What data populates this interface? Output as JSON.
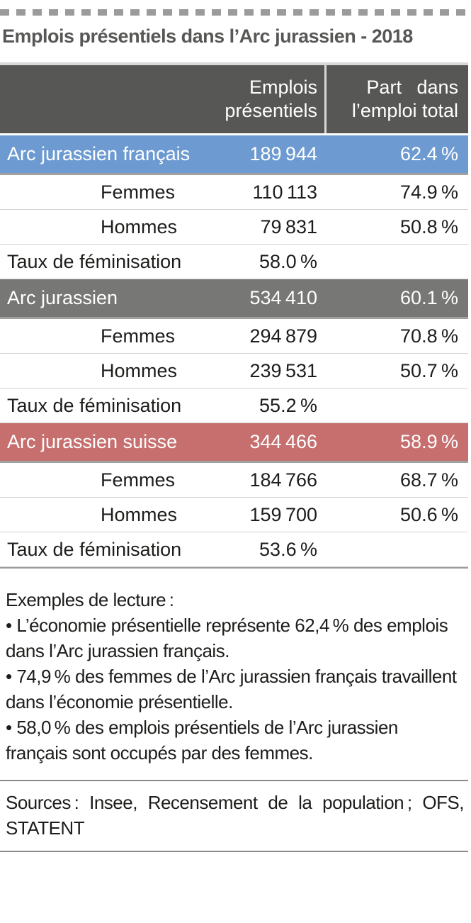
{
  "title": "Emplois présentiels dans l’Arc jurassien - 2018",
  "colors": {
    "header_bg": "#575756",
    "french_row": "#6d9bd1",
    "whole_arc_row": "#777776",
    "swiss_row": "#c66f6e"
  },
  "table": {
    "col_jobs_line1": "Emplois",
    "col_jobs_line2": "présentiels",
    "col_share_line1": "Part dans",
    "col_share_line2": "l’emploi total",
    "sections": [
      {
        "name": "Arc jurassien français",
        "jobs": "189 944",
        "share": "62.4 %",
        "rows": [
          {
            "label": "Femmes",
            "jobs": "110 113",
            "share": "74.9 %"
          },
          {
            "label": "Hommes",
            "jobs": "79 831",
            "share": "50.8 %"
          }
        ],
        "feminisation_label": "Taux de féminisation",
        "feminisation_value": "58.0 %"
      },
      {
        "name": "Arc jurassien",
        "jobs": "534 410",
        "share": "60.1 %",
        "rows": [
          {
            "label": "Femmes",
            "jobs": "294 879",
            "share": "70.8 %"
          },
          {
            "label": "Hommes",
            "jobs": "239 531",
            "share": "50.7 %"
          }
        ],
        "feminisation_label": "Taux de féminisation",
        "feminisation_value": "55.2 %"
      },
      {
        "name": "Arc jurassien suisse",
        "jobs": "344 466",
        "share": "58.9 %",
        "rows": [
          {
            "label": "Femmes",
            "jobs": "184 766",
            "share": "68.7 %"
          },
          {
            "label": "Hommes",
            "jobs": "159 700",
            "share": "50.6 %"
          }
        ],
        "feminisation_label": "Taux de féminisation",
        "feminisation_value": "53.6 %"
      }
    ]
  },
  "notes": {
    "heading": "Exemples de lecture :",
    "bullets": [
      "• L’économie présentielle représente 62,4 % des emplois dans l’Arc jurassien français.",
      "• 74,9 % des femmes de l’Arc jurassien français travaillent dans l’économie présentielle.",
      "• 58,0 % des emplois présentiels de l’Arc jurassien français sont occupés par des femmes."
    ]
  },
  "sources": "Sources : Insee, Recensement de la population ; OFS, STATENT"
}
